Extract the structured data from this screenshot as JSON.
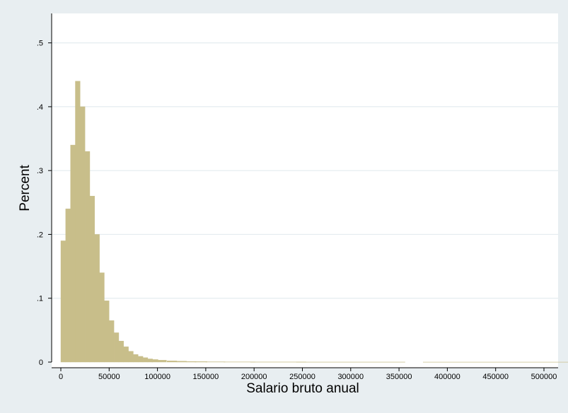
{
  "chart_data": {
    "type": "bar",
    "title": "",
    "xlabel": "Salario bruto anual",
    "ylabel": "Percent",
    "xlim": [
      0,
      510000
    ],
    "ylim": [
      0,
      0.545
    ],
    "x_ticks": [
      0,
      50000,
      100000,
      150000,
      200000,
      250000,
      300000,
      350000,
      400000,
      450000,
      500000
    ],
    "x_tick_labels": [
      "0",
      "50000",
      "100000",
      "150000",
      "200000",
      "250000",
      "300000",
      "350000",
      "400000",
      "450000",
      "500000"
    ],
    "y_ticks": [
      0,
      0.1,
      0.2,
      0.3,
      0.4,
      0.5
    ],
    "y_tick_labels": [
      "0",
      ".1",
      ".2",
      ".3",
      ".4",
      ".5"
    ],
    "grid": "horizontal",
    "bar_color": "#c8be8a",
    "bin_width": 5000,
    "series": [
      {
        "x": [
          2500,
          7500,
          12500,
          17500,
          22500,
          27500,
          32500,
          37500,
          42500,
          47500,
          52500,
          57500,
          62500,
          67500,
          72500,
          77500,
          82500,
          87500,
          92500,
          97500,
          105000,
          115000,
          125000,
          135000,
          145000,
          160000,
          185000,
          225000,
          300000,
          450000
        ],
        "values": [
          0.19,
          0.24,
          0.34,
          0.44,
          0.4,
          0.33,
          0.26,
          0.2,
          0.14,
          0.096,
          0.065,
          0.046,
          0.033,
          0.024,
          0.017,
          0.012,
          0.009,
          0.007,
          0.005,
          0.004,
          0.003,
          0.002,
          0.0015,
          0.001,
          0.0008,
          0.0005,
          0.0003,
          0.0002,
          0.0001,
          5e-05
        ]
      }
    ]
  }
}
